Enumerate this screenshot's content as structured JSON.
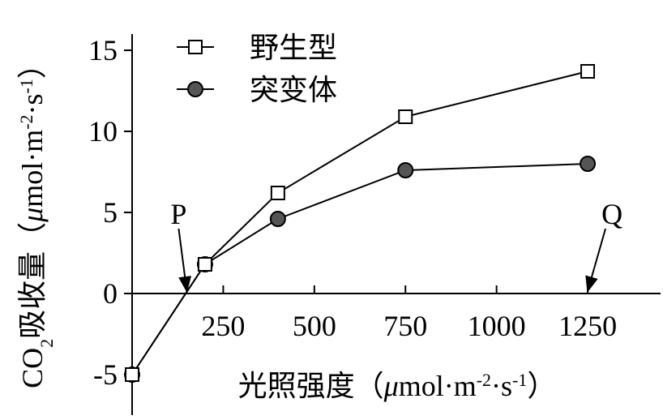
{
  "chart_data": {
    "type": "line",
    "x_label_parts": [
      "光照强度（",
      "μ",
      "mol·m",
      "-2",
      "·s",
      "-1",
      "）"
    ],
    "y_label_parts": [
      "CO",
      "2",
      "吸收量（",
      "μ",
      "mol·m",
      "-2",
      "·s",
      "-1",
      "）"
    ],
    "x": [
      0,
      200,
      400,
      750,
      1250
    ],
    "series": [
      {
        "name": "突变体",
        "color": "#555555",
        "marker": "circle",
        "values": [
          -5,
          1.8,
          4.6,
          7.6,
          8.0
        ]
      },
      {
        "name": "野生型",
        "color": "#ffffff",
        "marker": "square",
        "values": [
          -5,
          1.8,
          6.2,
          10.9,
          13.7
        ]
      }
    ],
    "xlim": [
      0,
      1450
    ],
    "ylim": [
      -7.5,
      16
    ],
    "xticks": [
      250,
      500,
      750,
      1000,
      1250
    ],
    "yticks": [
      -5,
      0,
      5,
      10,
      15
    ],
    "annotations": [
      {
        "text": "P",
        "x": 150,
        "y": 0
      },
      {
        "text": "Q",
        "x": 1250,
        "y": 0
      }
    ]
  }
}
